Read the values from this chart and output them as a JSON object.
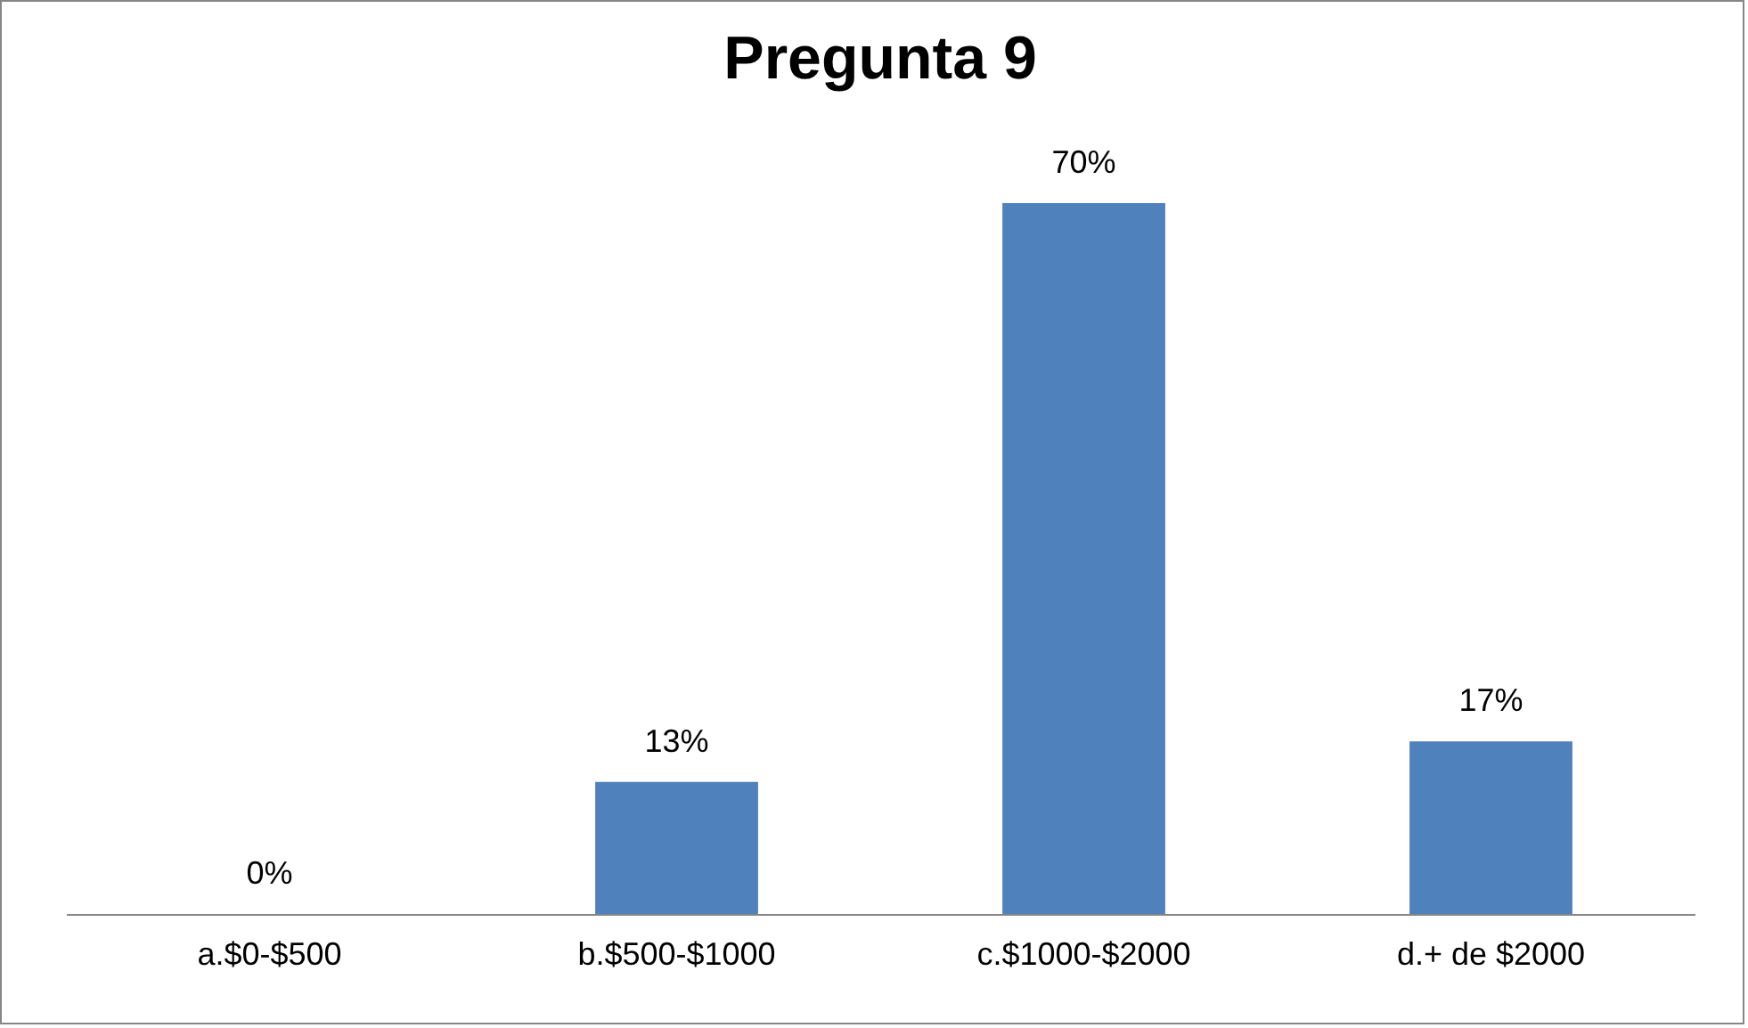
{
  "chart_data": {
    "type": "bar",
    "title": "Pregunta 9",
    "categories": [
      "a.$0-$500",
      "b.$500-$1000",
      "c.$1000-$2000",
      "d.+ de $2000"
    ],
    "values": [
      0,
      13,
      70,
      17
    ],
    "color": "#4f81bd",
    "value_labels": [
      "0%",
      "13%",
      "70%",
      "17%"
    ],
    "grid": false
  }
}
